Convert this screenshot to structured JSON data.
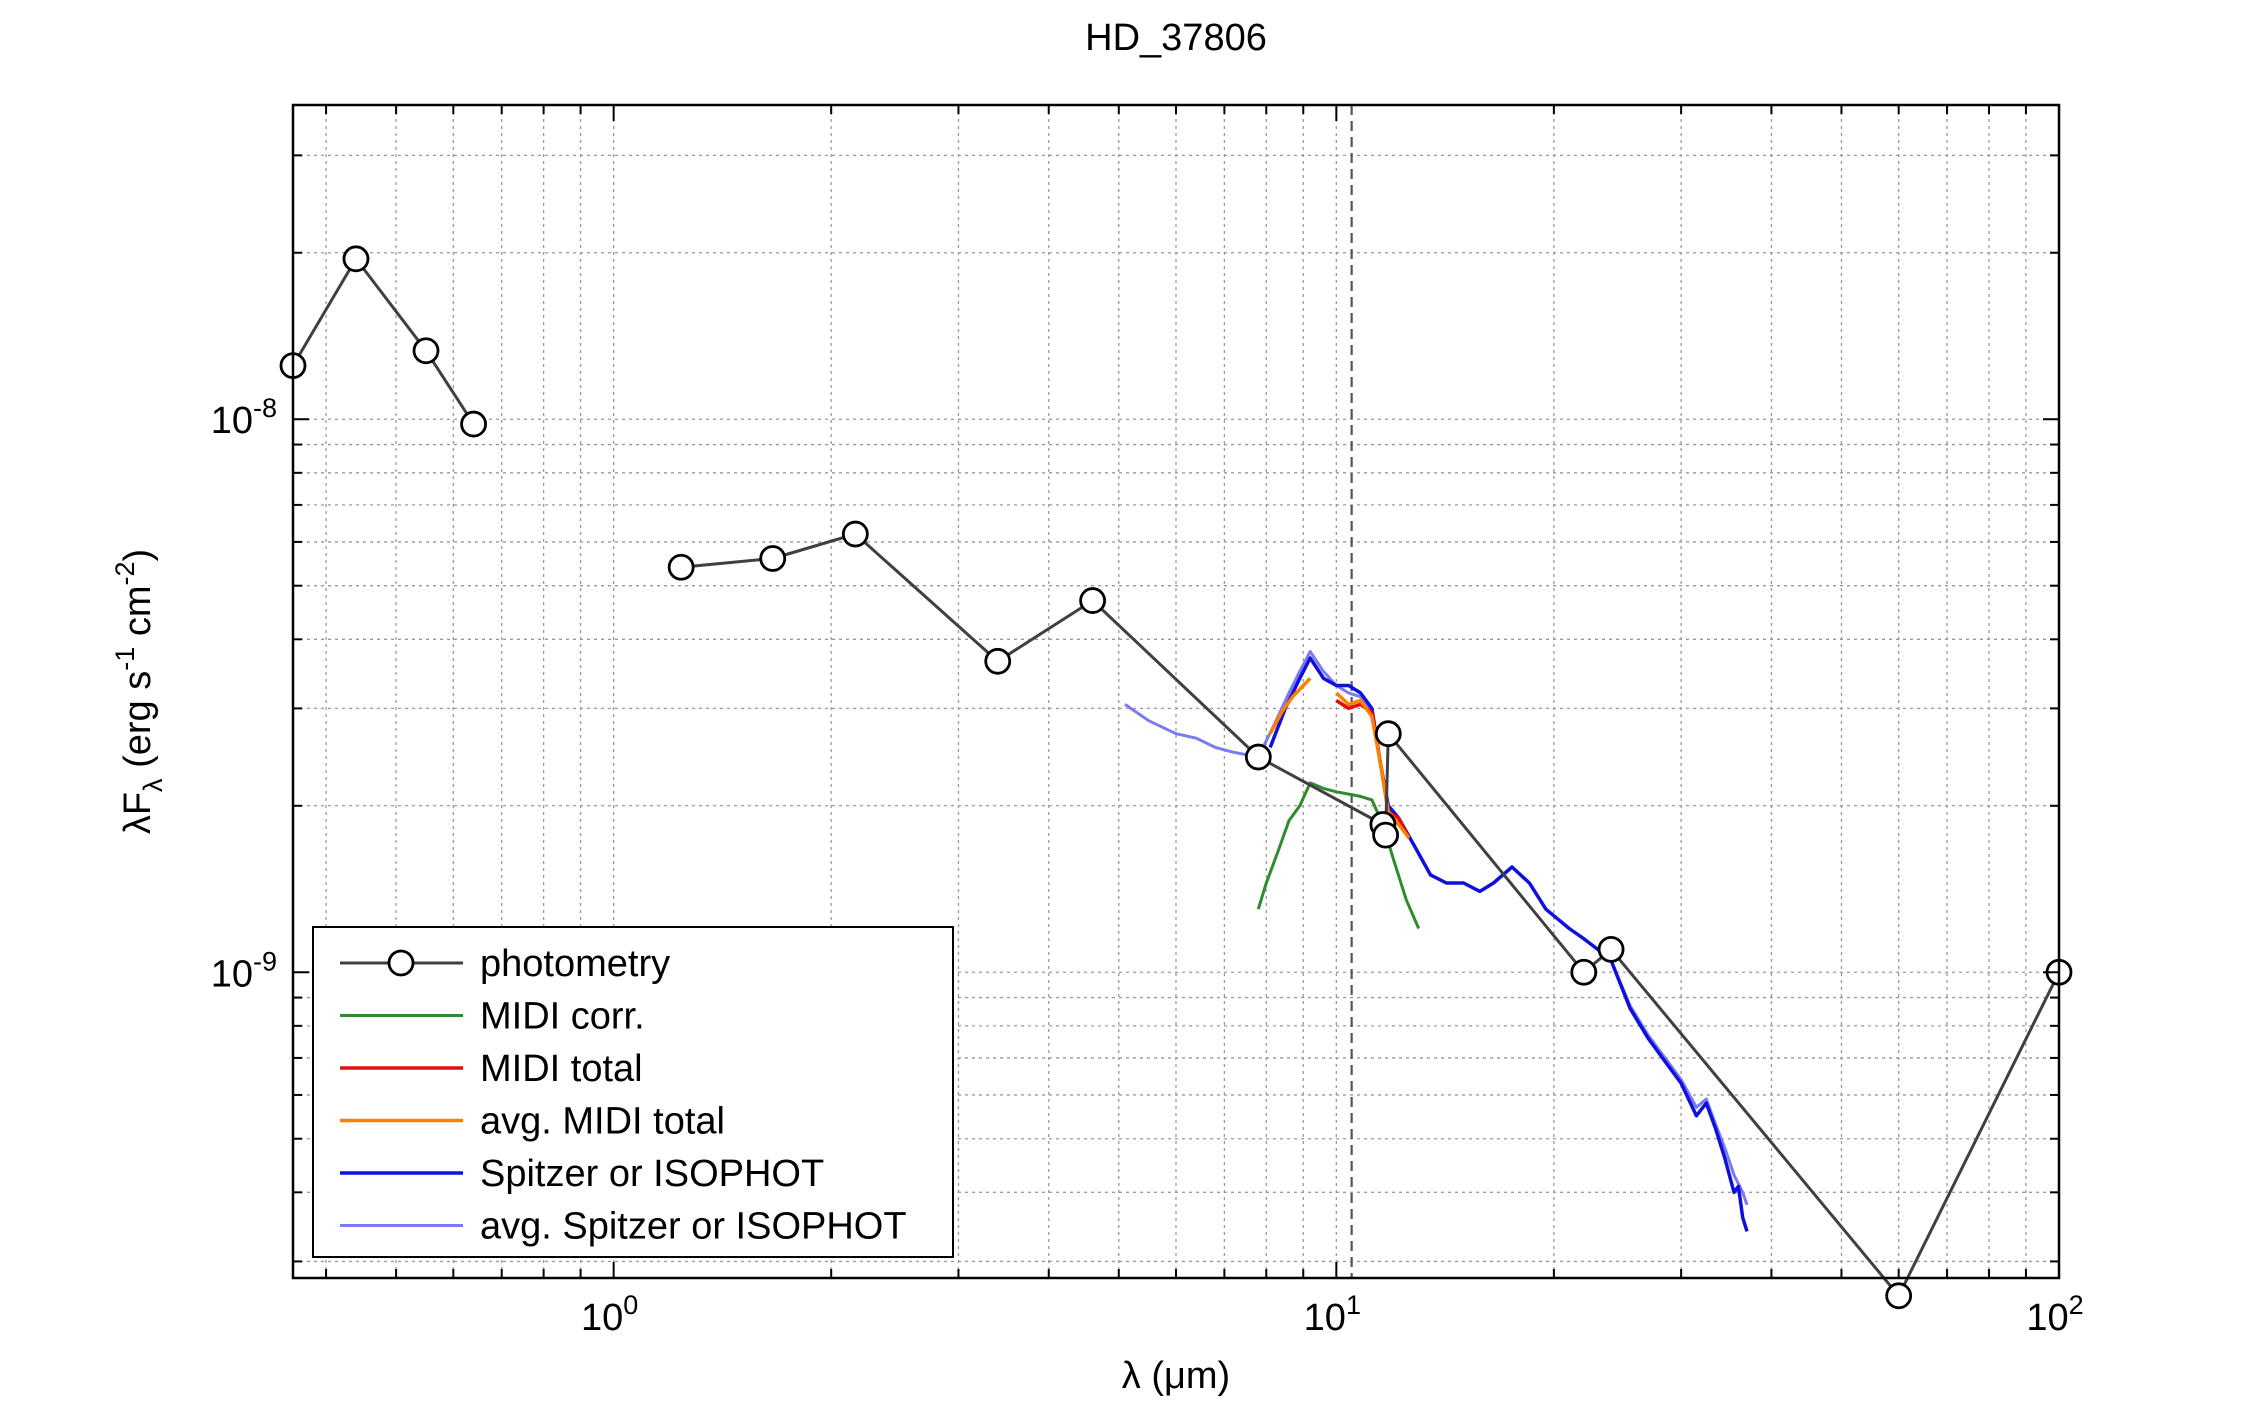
{
  "chart_data": {
    "type": "line",
    "title": "HD_37806",
    "xlabel": "λ (μm)",
    "ylabel": "λF_λ (erg s^-1 cm^-2)",
    "xscale": "log",
    "yscale": "log",
    "xlim": [
      0.36,
      100
    ],
    "ylim": [
      2.8e-10,
      3.7e-08
    ],
    "x_ticks": [
      {
        "value": 1,
        "base": "10",
        "exp": "0"
      },
      {
        "value": 10,
        "base": "10",
        "exp": "1"
      },
      {
        "value": 100,
        "base": "10",
        "exp": "2"
      }
    ],
    "y_ticks": [
      {
        "value": 1e-09,
        "base": "10",
        "exp": "-9"
      },
      {
        "value": 1e-08,
        "base": "10",
        "exp": "-8"
      }
    ],
    "grid": true,
    "vline": {
      "x": 10.5,
      "style": "dashed"
    },
    "legend_position": "bottom-left",
    "series": [
      {
        "name": "photometry",
        "color": "#404040",
        "marker": "circle",
        "segments": [
          [
            [
              0.36,
              1.25e-08
            ],
            [
              0.44,
              1.95e-08
            ],
            [
              0.55,
              1.33e-08
            ],
            [
              0.64,
              9.8e-09
            ]
          ],
          [
            [
              1.24,
              5.4e-09
            ],
            [
              1.66,
              5.6e-09
            ],
            [
              2.16,
              6.2e-09
            ],
            [
              3.4,
              3.65e-09
            ],
            [
              4.6,
              4.7e-09
            ],
            [
              7.8,
              2.45e-09
            ],
            [
              11.6,
              1.85e-09
            ],
            [
              11.7,
              1.77e-09
            ],
            [
              11.8,
              2.7e-09
            ],
            [
              22,
              1e-09
            ],
            [
              24,
              1.1e-09
            ],
            [
              60,
              2.6e-10
            ],
            [
              100,
              1e-09
            ]
          ]
        ]
      },
      {
        "name": "MIDI corr.",
        "color": "#2e8b2e",
        "points": [
          [
            7.8,
            1.3e-09
          ],
          [
            8.0,
            1.45e-09
          ],
          [
            8.3,
            1.65e-09
          ],
          [
            8.6,
            1.88e-09
          ],
          [
            8.9,
            2e-09
          ],
          [
            9.2,
            2.2e-09
          ],
          [
            9.6,
            2.15e-09
          ],
          [
            10.0,
            2.12e-09
          ],
          [
            10.4,
            2.1e-09
          ],
          [
            10.8,
            2.08e-09
          ],
          [
            11.2,
            2.05e-09
          ],
          [
            11.6,
            1.85e-09
          ],
          [
            12.0,
            1.6e-09
          ],
          [
            12.5,
            1.35e-09
          ],
          [
            13.0,
            1.2e-09
          ]
        ]
      },
      {
        "name": "MIDI total",
        "color": "#e01010",
        "points": [
          [
            10.0,
            3.1e-09
          ],
          [
            10.4,
            3e-09
          ],
          [
            10.8,
            3.05e-09
          ],
          [
            11.2,
            2.95e-09
          ],
          [
            11.5,
            2.4e-09
          ],
          [
            11.8,
            1.95e-09
          ],
          [
            12.2,
            1.9e-09
          ],
          [
            12.6,
            1.75e-09
          ]
        ]
      },
      {
        "name": "avg. MIDI total",
        "color": "#ff8000",
        "segments": [
          [
            [
              8.1,
              2.7e-09
            ],
            [
              8.4,
              2.95e-09
            ],
            [
              8.7,
              3.15e-09
            ],
            [
              9.0,
              3.3e-09
            ],
            [
              9.2,
              3.4e-09
            ]
          ],
          [
            [
              10.0,
              3.2e-09
            ],
            [
              10.4,
              3.05e-09
            ],
            [
              10.8,
              3.1e-09
            ],
            [
              11.2,
              2.9e-09
            ],
            [
              11.5,
              2.4e-09
            ],
            [
              11.8,
              1.95e-09
            ],
            [
              12.2,
              1.85e-09
            ],
            [
              12.6,
              1.75e-09
            ]
          ]
        ]
      },
      {
        "name": "Spitzer or ISOPHOT",
        "color": "#1010dd",
        "points": [
          [
            8.1,
            2.55e-09
          ],
          [
            8.5,
            3e-09
          ],
          [
            8.9,
            3.4e-09
          ],
          [
            9.2,
            3.7e-09
          ],
          [
            9.6,
            3.4e-09
          ],
          [
            10.0,
            3.3e-09
          ],
          [
            10.4,
            3.3e-09
          ],
          [
            10.8,
            3.2e-09
          ],
          [
            11.2,
            3e-09
          ],
          [
            11.5,
            2.4e-09
          ],
          [
            11.8,
            2e-09
          ],
          [
            12.2,
            1.9e-09
          ],
          [
            12.8,
            1.7e-09
          ],
          [
            13.5,
            1.5e-09
          ],
          [
            14.2,
            1.45e-09
          ],
          [
            15.0,
            1.45e-09
          ],
          [
            15.8,
            1.4e-09
          ],
          [
            16.5,
            1.45e-09
          ],
          [
            17.5,
            1.55e-09
          ],
          [
            18.5,
            1.45e-09
          ],
          [
            19.5,
            1.3e-09
          ],
          [
            21.0,
            1.2e-09
          ],
          [
            22.0,
            1.15e-09
          ],
          [
            23.0,
            1.1e-09
          ],
          [
            24.0,
            1.05e-09
          ],
          [
            25.5,
            8.6e-10
          ],
          [
            27.0,
            7.6e-10
          ],
          [
            28.5,
            6.9e-10
          ],
          [
            30.0,
            6.3e-10
          ],
          [
            31.5,
            5.5e-10
          ],
          [
            32.5,
            5.8e-10
          ],
          [
            33.5,
            5.2e-10
          ],
          [
            34.5,
            4.6e-10
          ],
          [
            35.5,
            4e-10
          ],
          [
            36.0,
            4.1e-10
          ],
          [
            36.5,
            3.6e-10
          ],
          [
            37.0,
            3.4e-10
          ]
        ]
      },
      {
        "name": "avg. Spitzer or ISOPHOT",
        "color": "#7b7bf0",
        "points": [
          [
            5.1,
            3.05e-09
          ],
          [
            5.5,
            2.85e-09
          ],
          [
            6.0,
            2.7e-09
          ],
          [
            6.4,
            2.65e-09
          ],
          [
            6.8,
            2.55e-09
          ],
          [
            7.2,
            2.5e-09
          ],
          [
            7.8,
            2.45e-09
          ],
          [
            8.2,
            2.8e-09
          ],
          [
            8.6,
            3.2e-09
          ],
          [
            8.9,
            3.5e-09
          ],
          [
            9.2,
            3.8e-09
          ],
          [
            9.6,
            3.5e-09
          ],
          [
            10.0,
            3.3e-09
          ],
          [
            10.4,
            3.2e-09
          ],
          [
            10.8,
            3.15e-09
          ],
          [
            11.2,
            2.95e-09
          ],
          [
            11.5,
            2.4e-09
          ],
          [
            11.8,
            2e-09
          ],
          [
            12.2,
            1.9e-09
          ],
          [
            12.8,
            1.7e-09
          ],
          [
            13.5,
            1.5e-09
          ],
          [
            14.2,
            1.45e-09
          ],
          [
            15.0,
            1.45e-09
          ],
          [
            15.8,
            1.4e-09
          ],
          [
            16.5,
            1.45e-09
          ],
          [
            17.5,
            1.55e-09
          ],
          [
            18.5,
            1.45e-09
          ],
          [
            19.5,
            1.3e-09
          ],
          [
            21.0,
            1.2e-09
          ],
          [
            22.0,
            1.15e-09
          ],
          [
            23.0,
            1.1e-09
          ],
          [
            24.0,
            1.05e-09
          ],
          [
            25.5,
            8.7e-10
          ],
          [
            27.0,
            7.7e-10
          ],
          [
            28.5,
            7e-10
          ],
          [
            30.0,
            6.4e-10
          ],
          [
            31.5,
            5.7e-10
          ],
          [
            32.5,
            5.9e-10
          ],
          [
            33.5,
            5.3e-10
          ],
          [
            34.5,
            4.8e-10
          ],
          [
            35.5,
            4.3e-10
          ],
          [
            36.5,
            4e-10
          ],
          [
            37.0,
            3.8e-10
          ]
        ]
      }
    ]
  }
}
